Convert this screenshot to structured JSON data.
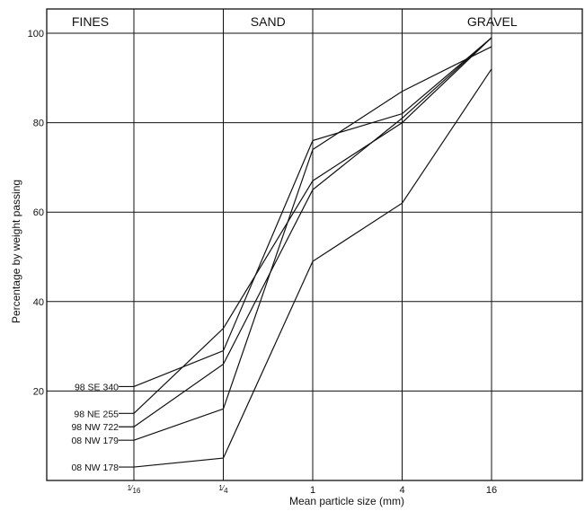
{
  "chart_data": {
    "type": "line",
    "sections": [
      "FINES",
      "SAND",
      "GRAVEL"
    ],
    "xlabel": "Mean particle size (mm)",
    "ylabel": "Percentage by weight passing",
    "x_ticks": [
      "1/16",
      "1/4",
      "1",
      "4",
      "16"
    ],
    "x": [
      0.0625,
      0.25,
      1,
      4,
      16
    ],
    "y_ticks": [
      20,
      40,
      60,
      80,
      100
    ],
    "ylim": [
      0,
      100
    ],
    "x_scale": "log",
    "grid": true,
    "series": [
      {
        "name": "98 SE 340",
        "values": [
          21,
          29,
          76,
          82,
          99
        ]
      },
      {
        "name": "98 NE 255",
        "values": [
          15,
          34,
          67,
          80,
          99
        ]
      },
      {
        "name": "98 NW 722",
        "values": [
          12,
          26,
          65,
          81,
          99
        ]
      },
      {
        "name": "08 NW 179",
        "values": [
          9,
          16,
          74,
          87,
          97
        ]
      },
      {
        "name": "08 NW 178",
        "values": [
          3,
          5,
          49,
          62,
          92
        ]
      }
    ]
  }
}
